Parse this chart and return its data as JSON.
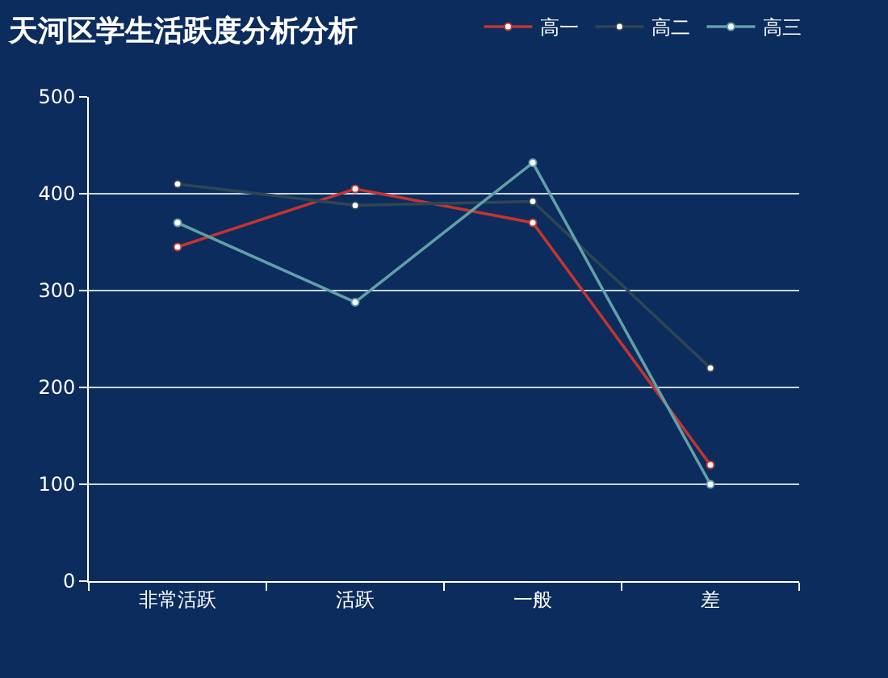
{
  "chart_data": {
    "type": "line",
    "title": "天河区学生活跃度分析分析",
    "categories": [
      "非常活跃",
      "活跃",
      "一般",
      "差"
    ],
    "series": [
      {
        "name": "高一",
        "color": "#c23531",
        "values": [
          345,
          405,
          370,
          120
        ]
      },
      {
        "name": "高二",
        "color": "#2f4554",
        "values": [
          410,
          388,
          392,
          220
        ]
      },
      {
        "name": "高三",
        "color": "#61a0a8",
        "values": [
          370,
          288,
          432,
          100
        ]
      }
    ],
    "ylim": [
      0,
      500
    ],
    "yticks": [
      0,
      100,
      200,
      300,
      400,
      500
    ],
    "grid": "y",
    "legend": "top",
    "marker": "circle",
    "line_style": "solid"
  }
}
